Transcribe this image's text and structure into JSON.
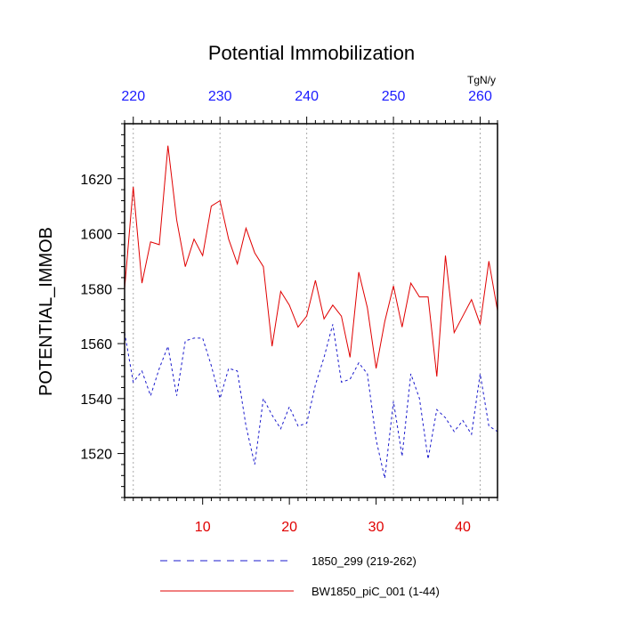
{
  "chart_data": {
    "type": "line",
    "title": "Potential Immobilization",
    "ylabel": "POTENTIAL_IMMOB",
    "units_label": "TgN/y",
    "ylim": [
      1504,
      1640
    ],
    "y_ticks": [
      1520,
      1540,
      1560,
      1580,
      1600,
      1620
    ],
    "y_minor_step": 4,
    "x_bottom": {
      "range": [
        1,
        44
      ],
      "ticks": [
        10,
        20,
        30,
        40
      ],
      "color": "#e00000"
    },
    "x_top": {
      "range": [
        219,
        262
      ],
      "ticks": [
        220,
        230,
        240,
        250,
        260
      ],
      "color": "#1a1aff"
    },
    "grid": "vertical dotted at top-axis ticks",
    "legend_position": "bottom",
    "series": [
      {
        "name": "BW1850_piC_001 (1-44)",
        "color": "#e00000",
        "style": "solid",
        "axis": "bottom",
        "x": [
          1,
          2,
          3,
          4,
          5,
          6,
          7,
          8,
          9,
          10,
          11,
          12,
          13,
          14,
          15,
          16,
          17,
          18,
          19,
          20,
          21,
          22,
          23,
          24,
          25,
          26,
          27,
          28,
          29,
          30,
          31,
          32,
          33,
          34,
          35,
          36,
          37,
          38,
          39,
          40,
          41,
          42,
          43,
          44
        ],
        "values": [
          1580,
          1617,
          1582,
          1597,
          1596,
          1632,
          1605,
          1588,
          1598,
          1592,
          1610,
          1612,
          1598,
          1589,
          1602,
          1593,
          1588,
          1559,
          1579,
          1574,
          1566,
          1570,
          1583,
          1569,
          1574,
          1570,
          1555,
          1586,
          1573,
          1551,
          1568,
          1581,
          1566,
          1582,
          1577,
          1577,
          1548,
          1592,
          1564,
          1570,
          1576,
          1567,
          1590,
          1572
        ]
      },
      {
        "name": "1850_299 (219-262)",
        "color": "#1a1acc",
        "style": "dashed",
        "axis": "top",
        "x": [
          219,
          220,
          221,
          222,
          223,
          224,
          225,
          226,
          227,
          228,
          229,
          230,
          231,
          232,
          233,
          234,
          235,
          236,
          237,
          238,
          239,
          240,
          241,
          242,
          243,
          244,
          245,
          246,
          247,
          248,
          249,
          250,
          251,
          252,
          253,
          254,
          255,
          256,
          257,
          258,
          259,
          260,
          261,
          262
        ],
        "values": [
          1564,
          1546,
          1550,
          1541,
          1551,
          1559,
          1541,
          1561,
          1562,
          1562,
          1552,
          1540,
          1551,
          1550,
          1530,
          1516,
          1540,
          1534,
          1529,
          1537,
          1530,
          1531,
          1545,
          1555,
          1567,
          1546,
          1547,
          1553,
          1549,
          1525,
          1511,
          1539,
          1519,
          1549,
          1540,
          1518,
          1536,
          1533,
          1528,
          1532,
          1527,
          1549,
          1530,
          1528
        ]
      }
    ],
    "legend": [
      {
        "label": "1850_299 (219-262)",
        "color": "#1a1acc",
        "style": "dashed"
      },
      {
        "label": "BW1850_piC_001 (1-44)",
        "color": "#e00000",
        "style": "solid"
      }
    ]
  }
}
